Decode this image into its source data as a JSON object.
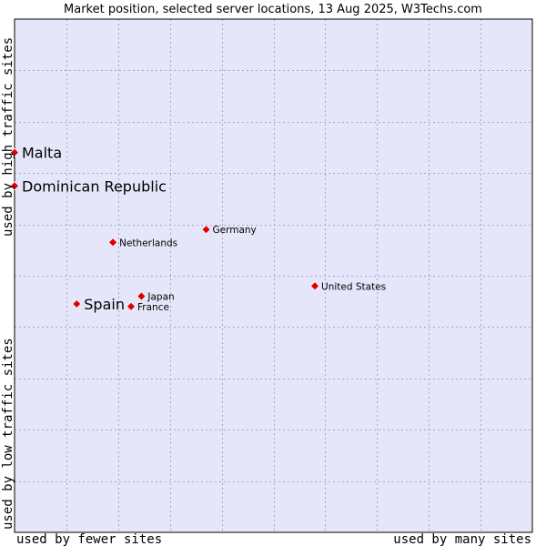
{
  "chart_data": {
    "type": "scatter",
    "title": "Market position, selected server locations, 13 Aug 2025, W3Techs.com",
    "xlabel_low": "used by fewer sites",
    "xlabel_high": "used by many sites",
    "ylabel_low": "used by low traffic sites",
    "ylabel_high": "used by high traffic sites",
    "xlim": [
      0,
      100
    ],
    "ylim": [
      0,
      100
    ],
    "grid": true,
    "colors": {
      "plot_background": "#e6e6fa",
      "grid": "#a8a8c0",
      "point": "#e00000",
      "frame": "#000000"
    },
    "points": [
      {
        "name": "Malta",
        "x": 0,
        "y": 74,
        "emphasis": true
      },
      {
        "name": "Dominican Republic",
        "x": 0,
        "y": 67.5,
        "emphasis": true
      },
      {
        "name": "Germany",
        "x": 37,
        "y": 59,
        "emphasis": false
      },
      {
        "name": "Netherlands",
        "x": 19,
        "y": 56.5,
        "emphasis": false
      },
      {
        "name": "United States",
        "x": 58,
        "y": 48,
        "emphasis": false
      },
      {
        "name": "Japan",
        "x": 24.5,
        "y": 46,
        "emphasis": false
      },
      {
        "name": "France",
        "x": 22.5,
        "y": 44,
        "emphasis": false
      },
      {
        "name": "Spain",
        "x": 12,
        "y": 44.5,
        "emphasis": true
      }
    ]
  }
}
